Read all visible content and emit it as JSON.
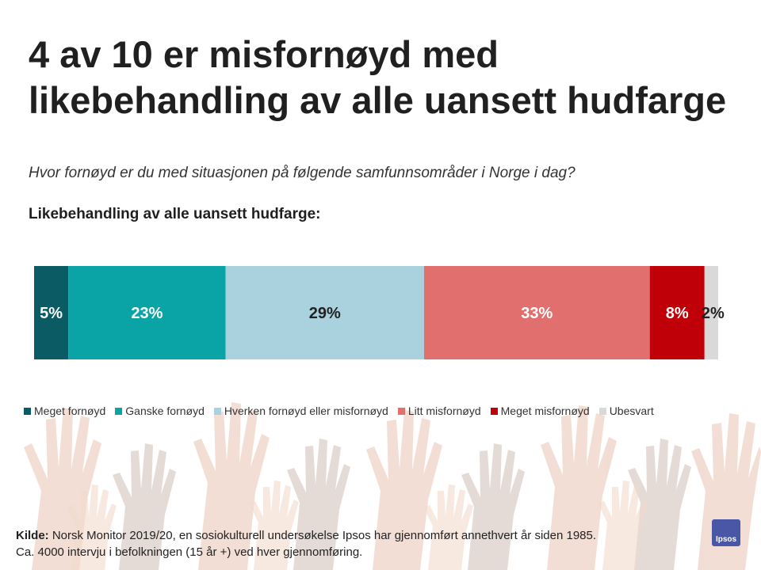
{
  "title": "4 av 10 er misfornøyd med likebehandling av alle uansett hudfarge",
  "subtitle": "Hvor fornøyd er du med situasjonen på følgende samfunnsområder  i Norge i dag?",
  "chart_data": {
    "type": "bar",
    "orientation": "horizontal-stacked-100",
    "title": "Likebehandling av alle uansett hudfarge:",
    "categories": [
      "Likebehandling av alle uansett hudfarge"
    ],
    "series": [
      {
        "name": "Meget fornøyd",
        "values": [
          5
        ],
        "label": "5%",
        "color": "#0b5b64",
        "label_color": "#ffffff"
      },
      {
        "name": "Ganske fornøyd",
        "values": [
          23
        ],
        "label": "23%",
        "color": "#0aa3a6",
        "label_color": "#ffffff"
      },
      {
        "name": "Hverken fornøyd eller misfornøyd",
        "values": [
          29
        ],
        "label": "29%",
        "color": "#a9d2de",
        "label_color": "#222222"
      },
      {
        "name": "Litt misfornøyd",
        "values": [
          33
        ],
        "label": "33%",
        "color": "#e06f6d",
        "label_color": "#ffffff"
      },
      {
        "name": "Meget misfornøyd",
        "values": [
          8
        ],
        "label": "8%",
        "color": "#c00008",
        "label_color": "#ffffff"
      },
      {
        "name": "Ubesvart",
        "values": [
          2
        ],
        "label": "2%",
        "color": "#d9d9d9",
        "label_color": "#222222"
      }
    ],
    "xlim": [
      0,
      100
    ],
    "legend_position": "bottom"
  },
  "footer": {
    "source_label": "Kilde:",
    "source_text": " Norsk Monitor 2019/20, en sosiokulturell undersøkelse Ipsos har gjennomført annethvert år siden 1985.",
    "line2": "Ca. 4000 intervju i befolkningen (15 år +) ved hver gjennomføring."
  },
  "logo": {
    "text": "Ipsos",
    "color": "#4a57a6"
  }
}
